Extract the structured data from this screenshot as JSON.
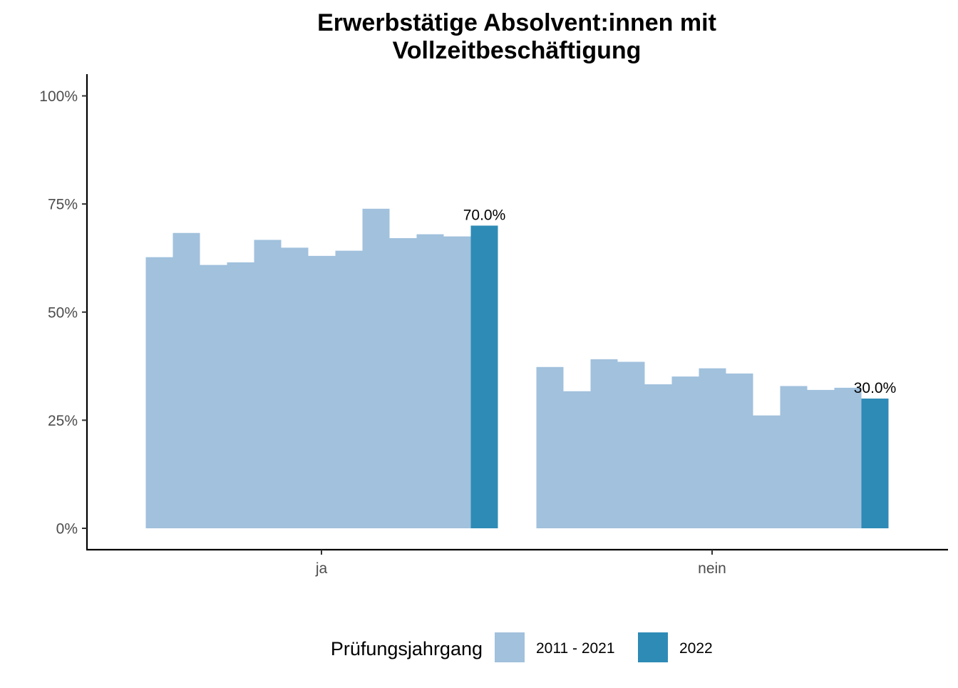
{
  "chart_data": {
    "type": "bar",
    "title_lines": [
      "Erwerbstätige Absolvent:innen mit",
      "Vollzeitbeschäftigung"
    ],
    "xlabel": "",
    "ylabel": "",
    "ylim": [
      0,
      1.05
    ],
    "y_ticks": [
      {
        "value": 0,
        "label": "0%"
      },
      {
        "value": 0.25,
        "label": "25%"
      },
      {
        "value": 0.5,
        "label": "50%"
      },
      {
        "value": 0.75,
        "label": "75%"
      },
      {
        "value": 1.0,
        "label": "100%"
      }
    ],
    "categories": [
      "ja",
      "nein"
    ],
    "series": [
      {
        "name": "2011 - 2021",
        "color": "#a1c1dd",
        "values_by_category": {
          "ja": [
            0.627,
            0.683,
            0.609,
            0.615,
            0.667,
            0.649,
            0.63,
            0.642,
            0.739,
            0.671,
            0.68,
            0.675
          ],
          "nein": [
            0.373,
            0.317,
            0.391,
            0.385,
            0.333,
            0.351,
            0.37,
            0.358,
            0.261,
            0.329,
            0.32,
            0.325
          ]
        }
      },
      {
        "name": "2022",
        "color": "#2e8bb6",
        "values_by_category": {
          "ja": [
            0.7
          ],
          "nein": [
            0.3
          ]
        },
        "data_labels": {
          "ja": "70.0%",
          "nein": "30.0%"
        }
      }
    ],
    "legend": {
      "title": "Prüfungsjahrgang",
      "position": "bottom",
      "items": [
        {
          "label": "2011 - 2021",
          "color": "#a1c1dd"
        },
        {
          "label": "2022",
          "color": "#2e8bb6"
        }
      ]
    },
    "grid": false
  }
}
